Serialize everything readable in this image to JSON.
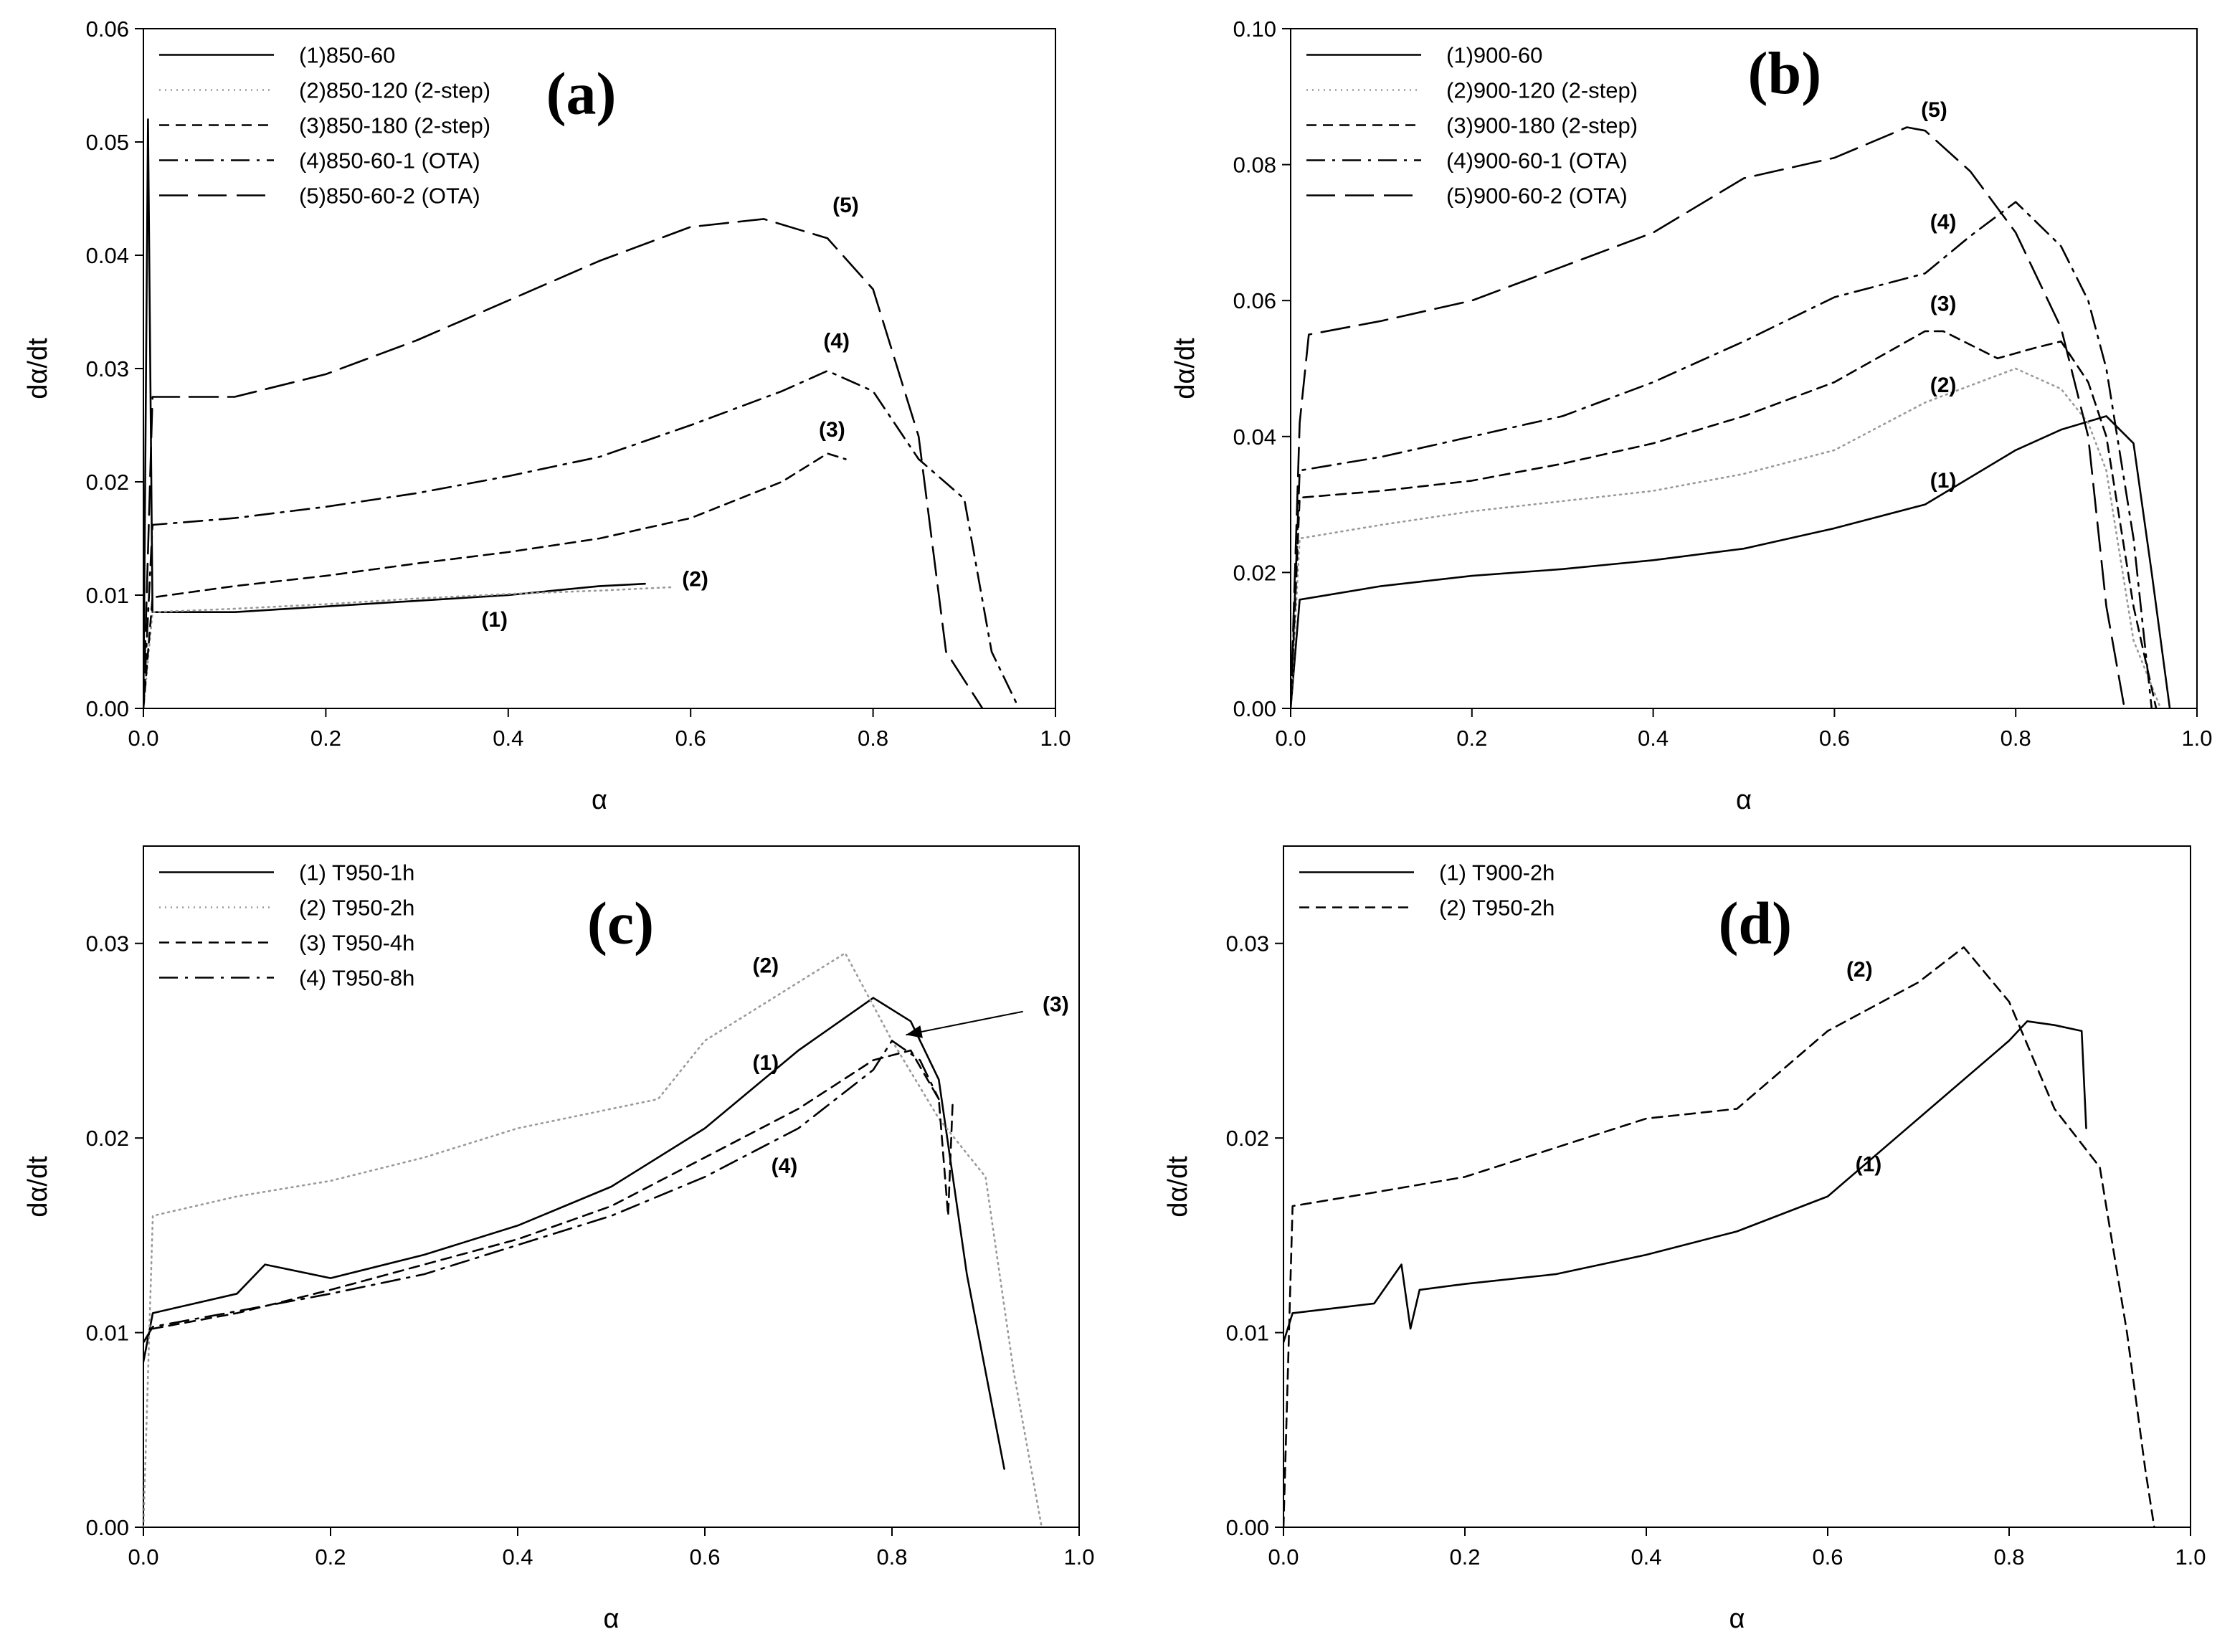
{
  "chart_data": [
    {
      "type": "line",
      "panel": "(a)",
      "xlabel": "α",
      "ylabel": "dα/dt",
      "xlim": [
        0.0,
        1.0
      ],
      "ylim": [
        0.0,
        0.06
      ],
      "xticks": [
        0.0,
        0.2,
        0.4,
        0.6,
        0.8,
        1.0
      ],
      "xtick_labels": [
        "0.0",
        "0.2",
        "0.4",
        "0.6",
        "0.8",
        "1.0"
      ],
      "yticks": [
        0.0,
        0.01,
        0.02,
        0.03,
        0.04,
        0.05,
        0.06
      ],
      "ytick_labels": [
        "0.00",
        "0.01",
        "0.02",
        "0.03",
        "0.04",
        "0.05",
        "0.06"
      ],
      "legend_position": "top-left",
      "series": [
        {
          "name": "(1)850-60",
          "dash": "solid",
          "color": "#000000",
          "x": [
            0.0,
            0.005,
            0.01,
            0.1,
            0.2,
            0.3,
            0.4,
            0.5,
            0.55
          ],
          "y": [
            0.0,
            0.052,
            0.0085,
            0.0085,
            0.009,
            0.0095,
            0.01,
            0.0108,
            0.011
          ]
        },
        {
          "name": "(2)850-120 (2-step)",
          "dash": "dotted",
          "color": "#9a9a9a",
          "x": [
            0.0,
            0.01,
            0.1,
            0.2,
            0.3,
            0.4,
            0.5,
            0.58
          ],
          "y": [
            0.0,
            0.0085,
            0.0088,
            0.0092,
            0.0097,
            0.0101,
            0.0104,
            0.0107
          ]
        },
        {
          "name": "(3)850-180 (2-step)",
          "dash": "dashed",
          "color": "#000000",
          "x": [
            0.0,
            0.01,
            0.1,
            0.2,
            0.3,
            0.4,
            0.5,
            0.6,
            0.7,
            0.75,
            0.77
          ],
          "y": [
            0.0,
            0.0098,
            0.0108,
            0.0117,
            0.0128,
            0.0138,
            0.015,
            0.0168,
            0.02,
            0.0225,
            0.022
          ]
        },
        {
          "name": "(4)850-60-1 (OTA)",
          "dash": "dashdot",
          "color": "#000000",
          "x": [
            0.0,
            0.01,
            0.1,
            0.2,
            0.3,
            0.4,
            0.5,
            0.6,
            0.7,
            0.75,
            0.8,
            0.85,
            0.9,
            0.93,
            0.96
          ],
          "y": [
            0.0,
            0.0162,
            0.0168,
            0.0178,
            0.019,
            0.0205,
            0.0222,
            0.025,
            0.028,
            0.0298,
            0.028,
            0.022,
            0.0185,
            0.005,
            0.0
          ]
        },
        {
          "name": "(5)850-60-2 (OTA)",
          "dash": "longdash",
          "color": "#000000",
          "x": [
            0.0,
            0.01,
            0.1,
            0.2,
            0.3,
            0.4,
            0.5,
            0.6,
            0.68,
            0.75,
            0.8,
            0.85,
            0.88,
            0.92
          ],
          "y": [
            0.0,
            0.0275,
            0.0275,
            0.0295,
            0.0325,
            0.036,
            0.0395,
            0.0425,
            0.0432,
            0.0415,
            0.037,
            0.024,
            0.005,
            0.0
          ]
        }
      ],
      "annotations": [
        {
          "text": "(a)",
          "x": 0.48,
          "y": 0.0525,
          "kind": "panel"
        },
        {
          "text": "(1)",
          "x": 0.385,
          "y": 0.0072,
          "kind": "curve"
        },
        {
          "text": "(2)",
          "x": 0.605,
          "y": 0.0108,
          "kind": "curve"
        },
        {
          "text": "(3)",
          "x": 0.755,
          "y": 0.024,
          "kind": "curve"
        },
        {
          "text": "(4)",
          "x": 0.76,
          "y": 0.0318,
          "kind": "curve"
        },
        {
          "text": "(5)",
          "x": 0.77,
          "y": 0.0438,
          "kind": "curve"
        }
      ]
    },
    {
      "type": "line",
      "panel": "(b)",
      "xlabel": "α",
      "ylabel": "dα/dt",
      "xlim": [
        0.0,
        1.0
      ],
      "ylim": [
        0.0,
        0.1
      ],
      "xticks": [
        0.0,
        0.2,
        0.4,
        0.6,
        0.8,
        1.0
      ],
      "xtick_labels": [
        "0.0",
        "0.2",
        "0.4",
        "0.6",
        "0.8",
        "1.0"
      ],
      "yticks": [
        0.0,
        0.02,
        0.04,
        0.06,
        0.08,
        0.1
      ],
      "ytick_labels": [
        "0.00",
        "0.02",
        "0.04",
        "0.06",
        "0.08",
        "0.10"
      ],
      "legend_position": "top-left",
      "series": [
        {
          "name": "(1)900-60",
          "dash": "solid",
          "color": "#000000",
          "x": [
            0.0,
            0.01,
            0.1,
            0.2,
            0.3,
            0.4,
            0.5,
            0.6,
            0.7,
            0.8,
            0.85,
            0.9,
            0.93,
            0.95,
            0.97
          ],
          "y": [
            0.0,
            0.016,
            0.018,
            0.0195,
            0.0205,
            0.0218,
            0.0235,
            0.0265,
            0.03,
            0.038,
            0.041,
            0.043,
            0.039,
            0.02,
            0.0
          ]
        },
        {
          "name": "(2)900-120 (2-step)",
          "dash": "dotted",
          "color": "#9a9a9a",
          "x": [
            0.0,
            0.01,
            0.1,
            0.2,
            0.3,
            0.4,
            0.5,
            0.6,
            0.7,
            0.8,
            0.85,
            0.88,
            0.9,
            0.93,
            0.96
          ],
          "y": [
            0.0,
            0.025,
            0.027,
            0.029,
            0.0305,
            0.032,
            0.0345,
            0.038,
            0.045,
            0.05,
            0.047,
            0.042,
            0.035,
            0.01,
            0.0
          ]
        },
        {
          "name": "(3)900-180 (2-step)",
          "dash": "dashed",
          "color": "#000000",
          "x": [
            0.0,
            0.01,
            0.1,
            0.2,
            0.3,
            0.4,
            0.5,
            0.6,
            0.7,
            0.72,
            0.78,
            0.82,
            0.85,
            0.88,
            0.9,
            0.93,
            0.955
          ],
          "y": [
            0.0,
            0.031,
            0.032,
            0.0335,
            0.036,
            0.039,
            0.043,
            0.048,
            0.0555,
            0.0555,
            0.0515,
            0.053,
            0.054,
            0.048,
            0.04,
            0.015,
            0.0
          ]
        },
        {
          "name": "(4)900-60-1 (OTA)",
          "dash": "dashdot",
          "color": "#000000",
          "x": [
            0.0,
            0.01,
            0.1,
            0.2,
            0.3,
            0.4,
            0.5,
            0.6,
            0.7,
            0.75,
            0.8,
            0.85,
            0.88,
            0.9,
            0.93,
            0.95
          ],
          "y": [
            0.0,
            0.035,
            0.037,
            0.04,
            0.043,
            0.048,
            0.054,
            0.0605,
            0.064,
            0.0695,
            0.0745,
            0.068,
            0.06,
            0.05,
            0.025,
            0.0
          ]
        },
        {
          "name": "(5)900-60-2 (OTA)",
          "dash": "longdash",
          "color": "#000000",
          "x": [
            0.0,
            0.01,
            0.02,
            0.1,
            0.2,
            0.3,
            0.4,
            0.5,
            0.6,
            0.68,
            0.7,
            0.75,
            0.8,
            0.85,
            0.88,
            0.9,
            0.92
          ],
          "y": [
            0.0,
            0.042,
            0.055,
            0.057,
            0.06,
            0.065,
            0.07,
            0.078,
            0.081,
            0.0855,
            0.085,
            0.079,
            0.07,
            0.056,
            0.04,
            0.015,
            0.0
          ]
        }
      ],
      "annotations": [
        {
          "text": "(b)",
          "x": 0.545,
          "y": 0.0905,
          "kind": "panel"
        },
        {
          "text": "(1)",
          "x": 0.72,
          "y": 0.0325,
          "kind": "curve"
        },
        {
          "text": "(2)",
          "x": 0.72,
          "y": 0.0465,
          "kind": "curve"
        },
        {
          "text": "(3)",
          "x": 0.72,
          "y": 0.0585,
          "kind": "curve"
        },
        {
          "text": "(4)",
          "x": 0.72,
          "y": 0.0705,
          "kind": "curve"
        },
        {
          "text": "(5)",
          "x": 0.71,
          "y": 0.087,
          "kind": "curve"
        }
      ]
    },
    {
      "type": "line",
      "panel": "(c)",
      "xlabel": "α",
      "ylabel": "dα/dt",
      "xlim": [
        0.0,
        1.0
      ],
      "ylim": [
        0.0,
        0.035
      ],
      "xticks": [
        0.0,
        0.2,
        0.4,
        0.6,
        0.8,
        1.0
      ],
      "xtick_labels": [
        "0.0",
        "0.2",
        "0.4",
        "0.6",
        "0.8",
        "1.0"
      ],
      "yticks": [
        0.0,
        0.01,
        0.02,
        0.03
      ],
      "ytick_labels": [
        "0.00",
        "0.01",
        "0.02",
        "0.03"
      ],
      "legend_position": "top-left",
      "series": [
        {
          "name": "(1) T950-1h",
          "dash": "solid",
          "color": "#000000",
          "x": [
            0.0,
            0.01,
            0.1,
            0.13,
            0.2,
            0.3,
            0.4,
            0.5,
            0.6,
            0.7,
            0.78,
            0.82,
            0.85,
            0.88,
            0.9,
            0.92
          ],
          "y": [
            0.0085,
            0.011,
            0.012,
            0.0135,
            0.0128,
            0.014,
            0.0155,
            0.0175,
            0.0205,
            0.0245,
            0.0272,
            0.026,
            0.023,
            0.013,
            0.008,
            0.003
          ]
        },
        {
          "name": "(2) T950-2h",
          "dash": "dotted",
          "color": "#9a9a9a",
          "x": [
            0.0,
            0.01,
            0.1,
            0.2,
            0.3,
            0.4,
            0.55,
            0.6,
            0.7,
            0.75,
            0.8,
            0.85,
            0.9,
            0.93,
            0.96
          ],
          "y": [
            0.0,
            0.016,
            0.017,
            0.0178,
            0.019,
            0.0205,
            0.022,
            0.025,
            0.028,
            0.0295,
            0.025,
            0.021,
            0.018,
            0.008,
            0.0
          ]
        },
        {
          "name": "(3) T950-4h",
          "dash": "dashed",
          "color": "#000000",
          "x": [
            0.0,
            0.01,
            0.1,
            0.2,
            0.3,
            0.4,
            0.5,
            0.6,
            0.7,
            0.78,
            0.82,
            0.85,
            0.86,
            0.865
          ],
          "y": [
            0.0095,
            0.0102,
            0.011,
            0.0122,
            0.0135,
            0.0148,
            0.0165,
            0.019,
            0.0215,
            0.024,
            0.0245,
            0.022,
            0.016,
            0.022
          ]
        },
        {
          "name": "(4) T950-8h",
          "dash": "dashdot",
          "color": "#000000",
          "x": [
            0.0,
            0.01,
            0.1,
            0.2,
            0.3,
            0.4,
            0.5,
            0.6,
            0.7,
            0.78,
            0.8,
            0.83,
            0.85
          ],
          "y": [
            0.0095,
            0.0103,
            0.0111,
            0.012,
            0.013,
            0.0145,
            0.016,
            0.018,
            0.0205,
            0.0235,
            0.025,
            0.024,
            0.022
          ]
        }
      ],
      "annotations": [
        {
          "text": "(c)",
          "x": 0.51,
          "y": 0.03,
          "kind": "panel"
        },
        {
          "text": "(1)",
          "x": 0.665,
          "y": 0.0235,
          "kind": "curve"
        },
        {
          "text": "(2)",
          "x": 0.665,
          "y": 0.0285,
          "kind": "curve"
        },
        {
          "text": "(3)",
          "x": 0.975,
          "y": 0.0265,
          "kind": "curve"
        },
        {
          "text": "(4)",
          "x": 0.685,
          "y": 0.0182,
          "kind": "curve"
        }
      ],
      "arrow": {
        "from": [
          0.94,
          0.0265
        ],
        "to": [
          0.815,
          0.0253
        ]
      }
    },
    {
      "type": "line",
      "panel": "(d)",
      "xlabel": "α",
      "ylabel": "dα/dt",
      "xlim": [
        0.0,
        1.0
      ],
      "ylim": [
        0.0,
        0.035
      ],
      "xticks": [
        0.0,
        0.2,
        0.4,
        0.6,
        0.8,
        1.0
      ],
      "xtick_labels": [
        "0.0",
        "0.2",
        "0.4",
        "0.6",
        "0.8",
        "1.0"
      ],
      "yticks": [
        0.0,
        0.01,
        0.02,
        0.03
      ],
      "ytick_labels": [
        "0.00",
        "0.01",
        "0.02",
        "0.03"
      ],
      "legend_position": "top-left",
      "series": [
        {
          "name": "(1) T900-2h",
          "dash": "solid",
          "color": "#000000",
          "x": [
            0.0,
            0.01,
            0.1,
            0.13,
            0.14,
            0.15,
            0.2,
            0.3,
            0.4,
            0.5,
            0.6,
            0.7,
            0.8,
            0.82,
            0.85,
            0.88,
            0.885
          ],
          "y": [
            0.0095,
            0.011,
            0.0115,
            0.0135,
            0.0102,
            0.0122,
            0.0125,
            0.013,
            0.014,
            0.0152,
            0.017,
            0.021,
            0.025,
            0.026,
            0.0258,
            0.0255,
            0.0205
          ]
        },
        {
          "name": "(2) T950-2h",
          "dash": "dashed",
          "color": "#000000",
          "x": [
            0.0,
            0.01,
            0.1,
            0.2,
            0.3,
            0.4,
            0.5,
            0.6,
            0.7,
            0.75,
            0.8,
            0.85,
            0.9,
            0.93,
            0.95,
            0.96
          ],
          "y": [
            0.0,
            0.0165,
            0.0172,
            0.018,
            0.0195,
            0.021,
            0.0215,
            0.0255,
            0.028,
            0.0298,
            0.027,
            0.0215,
            0.0185,
            0.01,
            0.003,
            0.0
          ]
        }
      ],
      "annotations": [
        {
          "text": "(d)",
          "x": 0.52,
          "y": 0.03,
          "kind": "panel"
        },
        {
          "text": "(1)",
          "x": 0.645,
          "y": 0.0183,
          "kind": "curve"
        },
        {
          "text": "(2)",
          "x": 0.635,
          "y": 0.0283,
          "kind": "curve"
        }
      ]
    }
  ]
}
